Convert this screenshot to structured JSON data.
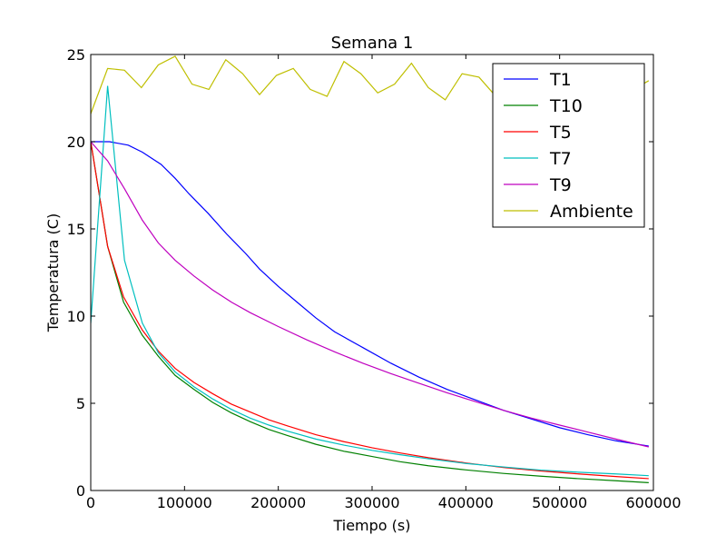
{
  "chart_data": {
    "type": "line",
    "title": "Semana 1",
    "xlabel": "Tiempo (s)",
    "ylabel": "Temperatura (C)",
    "xlim": [
      0,
      600000
    ],
    "ylim": [
      0,
      25
    ],
    "xticks": [
      0,
      100000,
      200000,
      300000,
      400000,
      500000,
      600000
    ],
    "xtick_labels": [
      "0",
      "100000",
      "200000",
      "300000",
      "400000",
      "500000",
      "600000"
    ],
    "yticks": [
      0,
      5,
      10,
      15,
      20,
      25
    ],
    "ytick_labels": [
      "0",
      "5",
      "10",
      "15",
      "20",
      "25"
    ],
    "grid": false,
    "legend_position": "top-right",
    "series": [
      {
        "name": "T1",
        "color": "#0000ff",
        "points": [
          [
            0,
            20
          ],
          [
            20000,
            20
          ],
          [
            40000,
            19.8
          ],
          [
            55000,
            19.4
          ],
          [
            75000,
            18.7
          ],
          [
            90000,
            17.9
          ],
          [
            105000,
            17.0
          ],
          [
            125000,
            15.9
          ],
          [
            145000,
            14.7
          ],
          [
            165000,
            13.6
          ],
          [
            180000,
            12.7
          ],
          [
            200000,
            11.7
          ],
          [
            220000,
            10.8
          ],
          [
            240000,
            9.9
          ],
          [
            260000,
            9.1
          ],
          [
            290000,
            8.2
          ],
          [
            320000,
            7.3
          ],
          [
            350000,
            6.5
          ],
          [
            380000,
            5.8
          ],
          [
            410000,
            5.2
          ],
          [
            440000,
            4.6
          ],
          [
            470000,
            4.1
          ],
          [
            500000,
            3.6
          ],
          [
            530000,
            3.2
          ],
          [
            560000,
            2.85
          ],
          [
            595000,
            2.55
          ]
        ]
      },
      {
        "name": "T10",
        "color": "#008000",
        "points": [
          [
            0,
            20
          ],
          [
            18000,
            14
          ],
          [
            35000,
            10.8
          ],
          [
            55000,
            8.9
          ],
          [
            72000,
            7.7
          ],
          [
            90000,
            6.6
          ],
          [
            110000,
            5.8
          ],
          [
            130000,
            5.05
          ],
          [
            150000,
            4.45
          ],
          [
            170000,
            3.95
          ],
          [
            190000,
            3.5
          ],
          [
            210000,
            3.15
          ],
          [
            240000,
            2.65
          ],
          [
            270000,
            2.25
          ],
          [
            300000,
            1.95
          ],
          [
            330000,
            1.65
          ],
          [
            360000,
            1.42
          ],
          [
            400000,
            1.18
          ],
          [
            440000,
            0.98
          ],
          [
            480000,
            0.82
          ],
          [
            520000,
            0.68
          ],
          [
            560000,
            0.56
          ],
          [
            595000,
            0.45
          ]
        ]
      },
      {
        "name": "T5",
        "color": "#ff0000",
        "points": [
          [
            0,
            20
          ],
          [
            18000,
            14
          ],
          [
            35000,
            11.1
          ],
          [
            55000,
            9.2
          ],
          [
            72000,
            8
          ],
          [
            90000,
            7.0
          ],
          [
            110000,
            6.2
          ],
          [
            130000,
            5.55
          ],
          [
            150000,
            4.95
          ],
          [
            170000,
            4.5
          ],
          [
            190000,
            4.05
          ],
          [
            210000,
            3.7
          ],
          [
            240000,
            3.2
          ],
          [
            270000,
            2.8
          ],
          [
            300000,
            2.45
          ],
          [
            330000,
            2.15
          ],
          [
            360000,
            1.88
          ],
          [
            400000,
            1.58
          ],
          [
            440000,
            1.32
          ],
          [
            480000,
            1.12
          ],
          [
            520000,
            0.95
          ],
          [
            560000,
            0.8
          ],
          [
            595000,
            0.68
          ]
        ]
      },
      {
        "name": "T7",
        "color": "#00bfbf",
        "points": [
          [
            0,
            9.6
          ],
          [
            18000,
            23.2
          ],
          [
            36000,
            13.2
          ],
          [
            55000,
            9.6
          ],
          [
            72000,
            7.9
          ],
          [
            90000,
            6.8
          ],
          [
            110000,
            5.95
          ],
          [
            130000,
            5.25
          ],
          [
            150000,
            4.65
          ],
          [
            170000,
            4.15
          ],
          [
            190000,
            3.75
          ],
          [
            210000,
            3.4
          ],
          [
            240000,
            2.95
          ],
          [
            270000,
            2.6
          ],
          [
            300000,
            2.3
          ],
          [
            330000,
            2.05
          ],
          [
            360000,
            1.82
          ],
          [
            400000,
            1.55
          ],
          [
            440000,
            1.35
          ],
          [
            480000,
            1.17
          ],
          [
            520000,
            1.05
          ],
          [
            560000,
            0.95
          ],
          [
            595000,
            0.85
          ]
        ]
      },
      {
        "name": "T9",
        "color": "#bf00bf",
        "points": [
          [
            0,
            20
          ],
          [
            18000,
            18.9
          ],
          [
            36000,
            17.3
          ],
          [
            55000,
            15.5
          ],
          [
            72000,
            14.2
          ],
          [
            90000,
            13.2
          ],
          [
            110000,
            12.3
          ],
          [
            130000,
            11.5
          ],
          [
            150000,
            10.8
          ],
          [
            170000,
            10.2
          ],
          [
            200000,
            9.4
          ],
          [
            230000,
            8.65
          ],
          [
            260000,
            7.95
          ],
          [
            290000,
            7.3
          ],
          [
            320000,
            6.7
          ],
          [
            350000,
            6.15
          ],
          [
            380000,
            5.6
          ],
          [
            410000,
            5.1
          ],
          [
            440000,
            4.6
          ],
          [
            470000,
            4.15
          ],
          [
            500000,
            3.75
          ],
          [
            530000,
            3.35
          ],
          [
            560000,
            2.95
          ],
          [
            595000,
            2.5
          ]
        ]
      },
      {
        "name": "Ambiente",
        "color": "#bfbf00",
        "points": [
          [
            0,
            21.6
          ],
          [
            18000,
            24.2
          ],
          [
            36000,
            24.1
          ],
          [
            54000,
            23.1
          ],
          [
            72000,
            24.4
          ],
          [
            90000,
            24.9
          ],
          [
            108000,
            23.3
          ],
          [
            126000,
            23.0
          ],
          [
            144000,
            24.7
          ],
          [
            162000,
            23.9
          ],
          [
            180000,
            22.7
          ],
          [
            198000,
            23.8
          ],
          [
            216000,
            24.2
          ],
          [
            234000,
            23.0
          ],
          [
            252000,
            22.6
          ],
          [
            270000,
            24.6
          ],
          [
            288000,
            23.9
          ],
          [
            306000,
            22.8
          ],
          [
            324000,
            23.3
          ],
          [
            342000,
            24.5
          ],
          [
            360000,
            23.1
          ],
          [
            378000,
            22.4
          ],
          [
            396000,
            23.9
          ],
          [
            414000,
            23.7
          ],
          [
            432000,
            22.6
          ],
          [
            450000,
            23.6
          ],
          [
            468000,
            23.9
          ],
          [
            486000,
            23.1
          ],
          [
            504000,
            22.7
          ],
          [
            522000,
            24.1
          ],
          [
            540000,
            23.6
          ],
          [
            558000,
            22.8
          ],
          [
            576000,
            22.9
          ],
          [
            595000,
            23.5
          ]
        ]
      }
    ]
  }
}
